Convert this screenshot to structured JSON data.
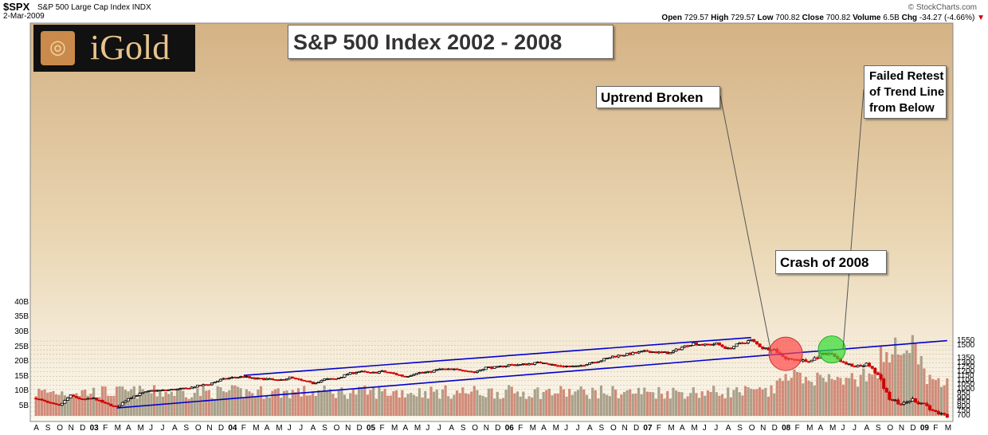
{
  "header": {
    "symbol": "$SPX",
    "name": "S&P 500 Large Cap Index",
    "exchange": "INDX",
    "date": "2-Mar-2009",
    "credit": "© StockCharts.com",
    "open_label": "Open",
    "open": "729.57",
    "high_label": "High",
    "high": "729.57",
    "low_label": "Low",
    "low": "700.82",
    "close_label": "Close",
    "close": "700.82",
    "volume_label": "Volume",
    "volume": "6.5B",
    "chg_label": "Chg",
    "chg": "-34.27 (-4.66%)"
  },
  "logo": {
    "text": "iGold"
  },
  "colors": {
    "up": "#000000",
    "down": "#cc0000",
    "trendline": "#0000cc",
    "bg_top": "#d7b98f",
    "bg_bottom": "#fbf7ee",
    "red_marker": "#ff4a4a",
    "green_marker": "#33dd33"
  },
  "chart_data": {
    "type": "candlestick",
    "title": "S&P 500 Index 2002 - 2008",
    "annotations": [
      "Uptrend Broken",
      "Failed Retest of Trend Line from Below",
      "Crash of 2008"
    ],
    "y_ticks": [
      700,
      750,
      800,
      850,
      900,
      950,
      1000,
      1050,
      1100,
      1150,
      1200,
      1250,
      1300,
      1350,
      1400,
      1450,
      1500,
      1550
    ],
    "y_tick_labels_visible": [
      "700",
      "750",
      "800",
      "850",
      "900",
      "950",
      "1000",
      "1050",
      "1100",
      "1150",
      "1200",
      "1250",
      "1300",
      "1350",
      "",
      "",
      "1500",
      "1550"
    ],
    "volume_ticks": [
      "5B",
      "10B",
      "15B",
      "20B",
      "25B",
      "30B",
      "35B",
      "40B"
    ],
    "x_month_labels": [
      "A",
      "S",
      "O",
      "N",
      "D",
      "03",
      "F",
      "M",
      "A",
      "M",
      "J",
      "J",
      "A",
      "S",
      "O",
      "N",
      "D",
      "04",
      "F",
      "M",
      "A",
      "M",
      "J",
      "J",
      "A",
      "S",
      "O",
      "N",
      "D",
      "05",
      "F",
      "M",
      "A",
      "M",
      "J",
      "J",
      "A",
      "S",
      "O",
      "N",
      "D",
      "06",
      "F",
      "M",
      "A",
      "M",
      "J",
      "J",
      "A",
      "S",
      "O",
      "N",
      "D",
      "07",
      "F",
      "M",
      "A",
      "M",
      "J",
      "J",
      "A",
      "S",
      "O",
      "N",
      "D",
      "08",
      "F",
      "M",
      "A",
      "M",
      "J",
      "J",
      "A",
      "S",
      "O",
      "N",
      "D",
      "09",
      "F",
      "M"
    ],
    "x_start": "2002-08",
    "x_end": "2009-03",
    "price_path": [
      [
        "2002-08",
        900
      ],
      [
        "2002-09",
        850
      ],
      [
        "2002-10",
        815
      ],
      [
        "2002-11",
        930
      ],
      [
        "2002-12",
        885
      ],
      [
        "2003-01",
        900
      ],
      [
        "2003-02",
        840
      ],
      [
        "2003-03",
        800
      ],
      [
        "2003-04",
        900
      ],
      [
        "2003-05",
        950
      ],
      [
        "2003-06",
        985
      ],
      [
        "2003-07",
        990
      ],
      [
        "2003-08",
        1000
      ],
      [
        "2003-09",
        1010
      ],
      [
        "2003-10",
        1040
      ],
      [
        "2003-11",
        1060
      ],
      [
        "2003-12",
        1110
      ],
      [
        "2004-01",
        1135
      ],
      [
        "2004-02",
        1145
      ],
      [
        "2004-03",
        1120
      ],
      [
        "2004-04",
        1120
      ],
      [
        "2004-05",
        1100
      ],
      [
        "2004-06",
        1135
      ],
      [
        "2004-07",
        1100
      ],
      [
        "2004-08",
        1070
      ],
      [
        "2004-09",
        1115
      ],
      [
        "2004-10",
        1120
      ],
      [
        "2004-11",
        1175
      ],
      [
        "2004-12",
        1205
      ],
      [
        "2005-01",
        1185
      ],
      [
        "2005-02",
        1205
      ],
      [
        "2005-03",
        1180
      ],
      [
        "2005-04",
        1145
      ],
      [
        "2005-05",
        1190
      ],
      [
        "2005-06",
        1195
      ],
      [
        "2005-07",
        1230
      ],
      [
        "2005-08",
        1225
      ],
      [
        "2005-09",
        1225
      ],
      [
        "2005-10",
        1195
      ],
      [
        "2005-11",
        1250
      ],
      [
        "2005-12",
        1250
      ],
      [
        "2006-01",
        1280
      ],
      [
        "2006-02",
        1280
      ],
      [
        "2006-03",
        1295
      ],
      [
        "2006-04",
        1310
      ],
      [
        "2006-05",
        1270
      ],
      [
        "2006-06",
        1265
      ],
      [
        "2006-07",
        1260
      ],
      [
        "2006-08",
        1305
      ],
      [
        "2006-09",
        1330
      ],
      [
        "2006-10",
        1375
      ],
      [
        "2006-11",
        1395
      ],
      [
        "2006-12",
        1415
      ],
      [
        "2007-01",
        1435
      ],
      [
        "2007-02",
        1420
      ],
      [
        "2007-03",
        1415
      ],
      [
        "2007-04",
        1480
      ],
      [
        "2007-05",
        1525
      ],
      [
        "2007-06",
        1505
      ],
      [
        "2007-07",
        1520
      ],
      [
        "2007-08",
        1460
      ],
      [
        "2007-09",
        1520
      ],
      [
        "2007-10",
        1560
      ],
      [
        "2007-11",
        1470
      ],
      [
        "2007-12",
        1455
      ],
      [
        "2008-01",
        1350
      ],
      [
        "2008-02",
        1335
      ],
      [
        "2008-03",
        1315
      ],
      [
        "2008-04",
        1390
      ],
      [
        "2008-05",
        1405
      ],
      [
        "2008-06",
        1300
      ],
      [
        "2008-07",
        1250
      ],
      [
        "2008-08",
        1285
      ],
      [
        "2008-09",
        1165
      ],
      [
        "2008-10",
        900
      ],
      [
        "2008-11",
        830
      ],
      [
        "2008-12",
        880
      ],
      [
        "2009-01",
        830
      ],
      [
        "2009-02",
        740
      ],
      [
        "2009-03",
        701
      ]
    ],
    "upper_channel_line": [
      [
        "2004-02",
        1160
      ],
      [
        "2007-10",
        1590
      ]
    ],
    "lower_trend_line": [
      [
        "2003-03",
        790
      ],
      [
        "2009-03",
        1555
      ]
    ],
    "markers": [
      {
        "type": "red-circle",
        "date": "2008-01",
        "value": 1405
      },
      {
        "type": "green-circle",
        "date": "2008-05",
        "value": 1455
      }
    ]
  }
}
